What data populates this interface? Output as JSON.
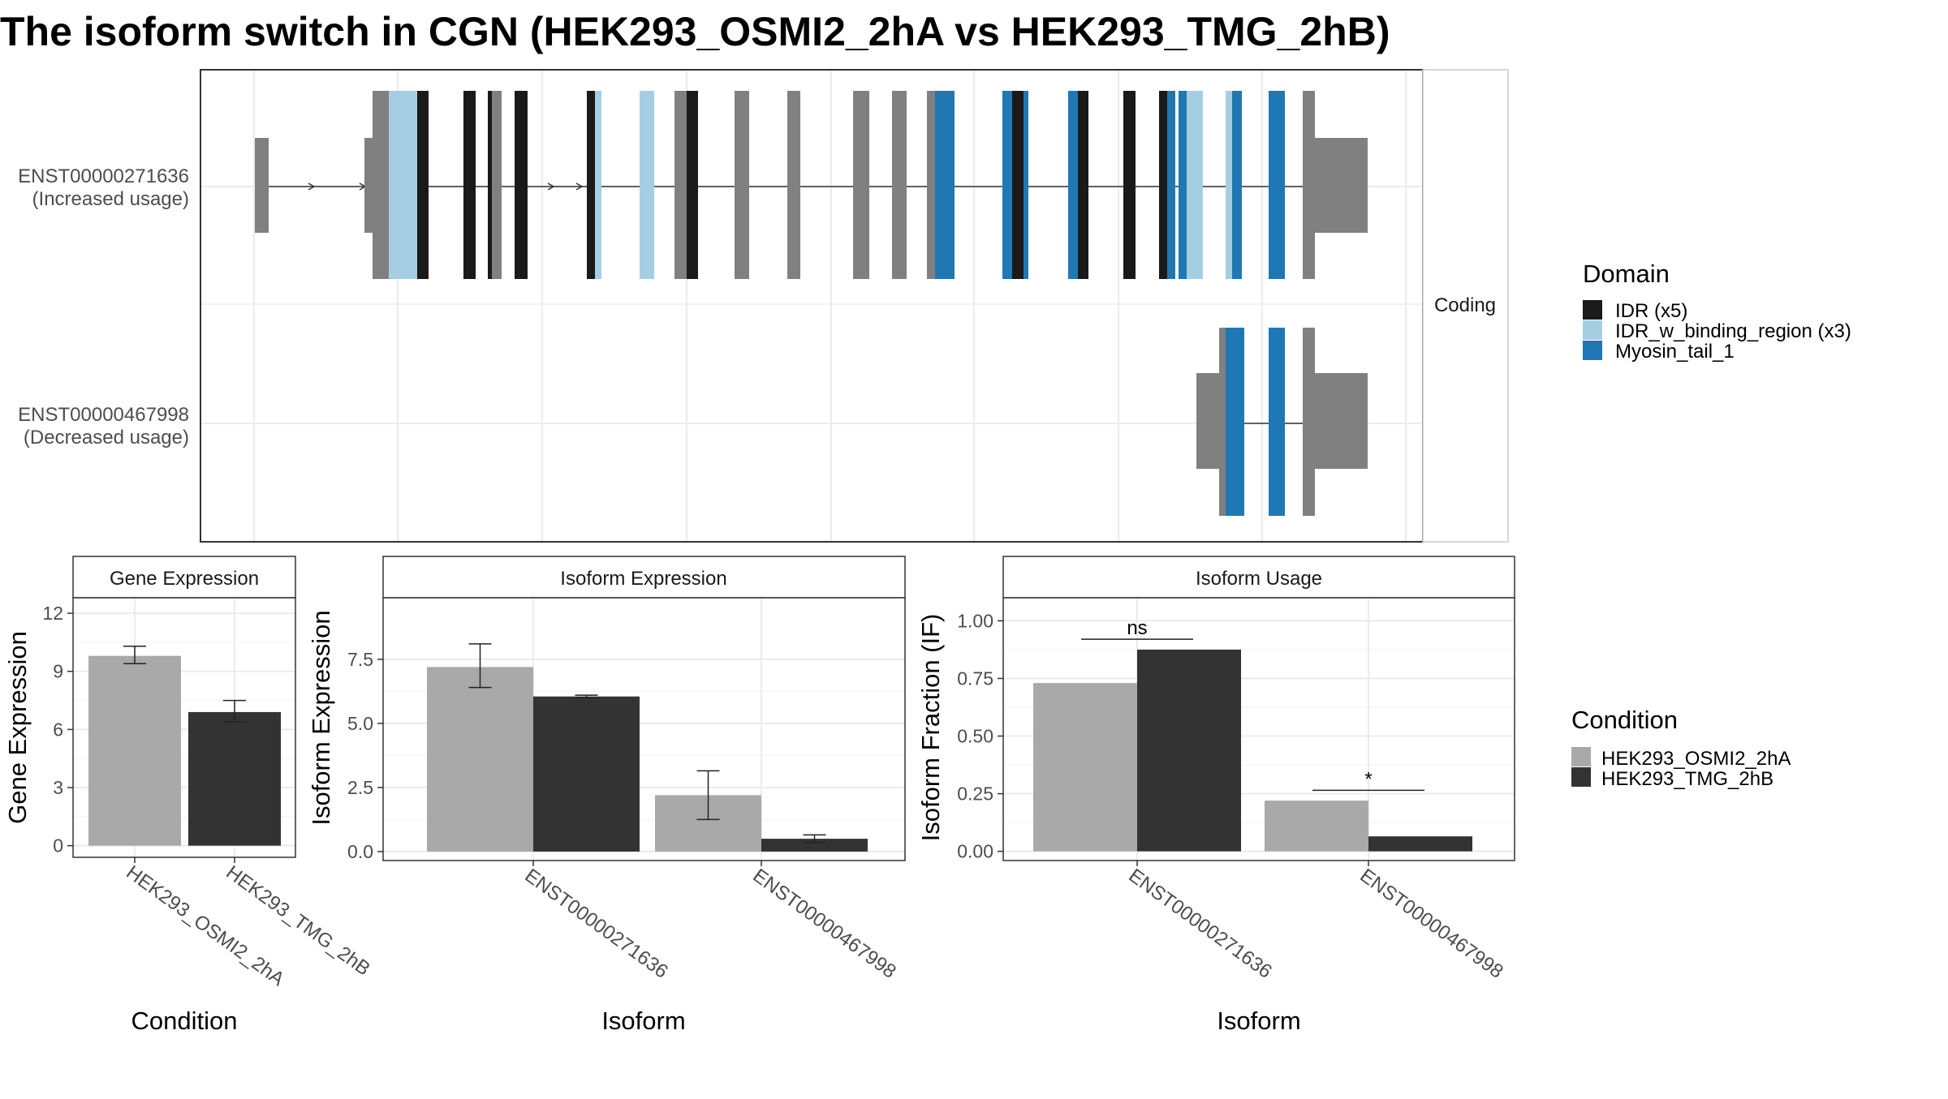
{
  "title": "The isoform switch in CGN (HEK293_OSMI2_2hA vs HEK293_TMG_2hB)",
  "colors": {
    "exon": "#808080",
    "idr": "#1a1a1a",
    "idr_binding": "#a6cee3",
    "myosin": "#1f78b4",
    "cond1": "#a9a9a9",
    "cond2": "#333333",
    "grid": "#ebebeb",
    "panel_border": "#333333",
    "strip_fill": "#ffffff",
    "text": "#4d4d4d"
  },
  "structure_panel": {
    "strip_label": "Coding",
    "isoforms": [
      {
        "id": "ENST00000271636",
        "label": "ENST00000271636",
        "sublabel": "(Increased usage)"
      },
      {
        "id": "ENST00000467998",
        "label": "ENST00000467998",
        "sublabel": "(Decreased usage)"
      }
    ]
  },
  "legends": {
    "domain": {
      "title": "Domain",
      "items": [
        {
          "label": "IDR (x5)",
          "color": "#1a1a1a"
        },
        {
          "label": "IDR_w_binding_region (x3)",
          "color": "#a6cee3"
        },
        {
          "label": "Myosin_tail_1",
          "color": "#1f78b4"
        }
      ]
    },
    "condition": {
      "title": "Condition",
      "items": [
        {
          "label": "HEK293_OSMI2_2hA",
          "color": "#a9a9a9"
        },
        {
          "label": "HEK293_TMG_2hB",
          "color": "#333333"
        }
      ]
    }
  },
  "chart_data": [
    {
      "type": "bar",
      "title": "Gene Expression",
      "xlabel": "Condition",
      "ylabel": "Gene Expression",
      "categories": [
        "HEK293_OSMI2_2hA",
        "HEK293_TMG_2hB"
      ],
      "values": [
        9.8,
        6.9
      ],
      "error_low": [
        9.4,
        6.4
      ],
      "error_high": [
        10.3,
        7.5
      ],
      "ylim": [
        -0.6,
        12.8
      ],
      "yticks": [
        0,
        3,
        6,
        9,
        12
      ],
      "ytick_labels": [
        "0",
        "3",
        "6",
        "9",
        "12"
      ]
    },
    {
      "type": "bar",
      "title": "Isoform Expression",
      "xlabel": "Isoform",
      "ylabel": "Isoform Expression",
      "categories": [
        "ENST00000271636",
        "ENST00000467998"
      ],
      "series": [
        {
          "name": "HEK293_OSMI2_2hA",
          "values": [
            7.2,
            2.2
          ],
          "error_low": [
            6.4,
            1.25
          ],
          "error_high": [
            8.1,
            3.15
          ]
        },
        {
          "name": "HEK293_TMG_2hB",
          "values": [
            6.05,
            0.5
          ],
          "error_low": [
            6.0,
            0.35
          ],
          "error_high": [
            6.1,
            0.65
          ]
        }
      ],
      "ylim": [
        -0.35,
        9.9
      ],
      "yticks": [
        0,
        2.5,
        5,
        7.5
      ],
      "ytick_labels": [
        "0.0",
        "2.5",
        "5.0",
        "7.5"
      ]
    },
    {
      "type": "bar",
      "title": "Isoform Usage",
      "xlabel": "Isoform",
      "ylabel": "Isoform Fraction (IF)",
      "categories": [
        "ENST00000271636",
        "ENST00000467998"
      ],
      "series": [
        {
          "name": "HEK293_OSMI2_2hA",
          "values": [
            0.73,
            0.22
          ]
        },
        {
          "name": "HEK293_TMG_2hB",
          "values": [
            0.875,
            0.065
          ]
        }
      ],
      "significance": [
        {
          "category": "ENST00000271636",
          "label": "ns",
          "y": 0.92
        },
        {
          "category": "ENST00000467998",
          "label": "*",
          "y": 0.265
        }
      ],
      "ylim": [
        -0.04,
        1.1
      ],
      "yticks": [
        0,
        0.25,
        0.5,
        0.75,
        1.0
      ],
      "ytick_labels": [
        "0.00",
        "0.25",
        "0.50",
        "0.75",
        "1.00"
      ]
    }
  ]
}
